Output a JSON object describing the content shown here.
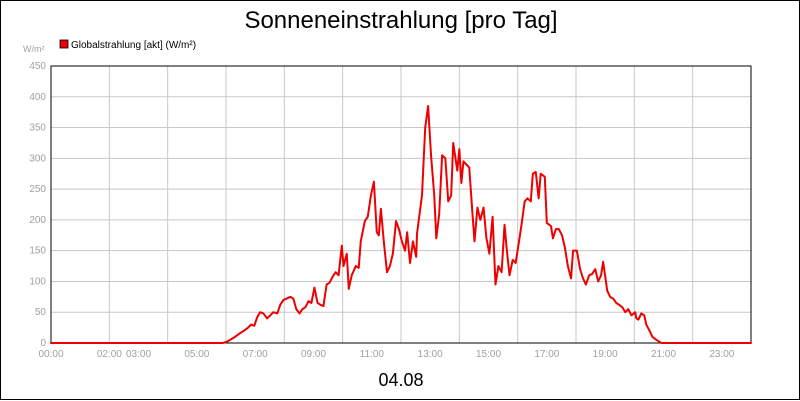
{
  "chart_data": {
    "type": "line",
    "title": "Sonneneinstrahlung [pro Tag]",
    "ylabel": "W/m²",
    "xlabel": "04.08",
    "legend_position": "top-left",
    "grid": true,
    "ylim": [
      0,
      450
    ],
    "xlim": [
      0,
      24
    ],
    "y_ticks": [
      "0",
      "50",
      "100",
      "150",
      "200",
      "250",
      "300",
      "350",
      "400",
      "450"
    ],
    "x_ticks": [
      {
        "label": "00:00",
        "x": 0
      },
      {
        "label": "02:00",
        "x": 2
      },
      {
        "label": "03:00",
        "x": 3
      },
      {
        "label": "05:00",
        "x": 5
      },
      {
        "label": "07:00",
        "x": 7
      },
      {
        "label": "09:00",
        "x": 9
      },
      {
        "label": "11:00",
        "x": 11
      },
      {
        "label": "13:00",
        "x": 13
      },
      {
        "label": "15:00",
        "x": 15
      },
      {
        "label": "17:00",
        "x": 17
      },
      {
        "label": "19:00",
        "x": 19
      },
      {
        "label": "21:00",
        "x": 21
      },
      {
        "label": "23:00",
        "x": 23
      }
    ],
    "grid_x": [
      0,
      2,
      4,
      6,
      8,
      10,
      12,
      14,
      16,
      18,
      20,
      22,
      24
    ],
    "series": [
      {
        "name": "Globalstrahlung [akt] (W/m²)",
        "color": "#ee0000",
        "points": [
          [
            0.0,
            0
          ],
          [
            5.89,
            0
          ],
          [
            6.03,
            2
          ],
          [
            6.14,
            5
          ],
          [
            6.31,
            10
          ],
          [
            6.45,
            15
          ],
          [
            6.62,
            20
          ],
          [
            6.76,
            25
          ],
          [
            6.86,
            30
          ],
          [
            6.97,
            28
          ],
          [
            7.07,
            42
          ],
          [
            7.17,
            50
          ],
          [
            7.28,
            48
          ],
          [
            7.41,
            40
          ],
          [
            7.52,
            45
          ],
          [
            7.62,
            50
          ],
          [
            7.76,
            48
          ],
          [
            7.86,
            62
          ],
          [
            7.97,
            70
          ],
          [
            8.07,
            72
          ],
          [
            8.21,
            75
          ],
          [
            8.31,
            72
          ],
          [
            8.41,
            55
          ],
          [
            8.52,
            48
          ],
          [
            8.62,
            55
          ],
          [
            8.72,
            58
          ],
          [
            8.83,
            68
          ],
          [
            8.93,
            65
          ],
          [
            9.03,
            90
          ],
          [
            9.14,
            65
          ],
          [
            9.24,
            62
          ],
          [
            9.34,
            60
          ],
          [
            9.45,
            95
          ],
          [
            9.55,
            98
          ],
          [
            9.66,
            108
          ],
          [
            9.76,
            115
          ],
          [
            9.86,
            110
          ],
          [
            9.97,
            158
          ],
          [
            10.03,
            125
          ],
          [
            10.14,
            145
          ],
          [
            10.21,
            88
          ],
          [
            10.31,
            110
          ],
          [
            10.45,
            125
          ],
          [
            10.55,
            122
          ],
          [
            10.62,
            165
          ],
          [
            10.76,
            198
          ],
          [
            10.86,
            205
          ],
          [
            10.97,
            240
          ],
          [
            11.07,
            262
          ],
          [
            11.17,
            180
          ],
          [
            11.24,
            175
          ],
          [
            11.31,
            218
          ],
          [
            11.41,
            165
          ],
          [
            11.52,
            115
          ],
          [
            11.62,
            125
          ],
          [
            11.72,
            145
          ],
          [
            11.83,
            198
          ],
          [
            11.93,
            185
          ],
          [
            12.03,
            165
          ],
          [
            12.14,
            150
          ],
          [
            12.21,
            180
          ],
          [
            12.31,
            130
          ],
          [
            12.41,
            165
          ],
          [
            12.52,
            140
          ],
          [
            12.55,
            178
          ],
          [
            12.72,
            240
          ],
          [
            12.83,
            350
          ],
          [
            12.93,
            385
          ],
          [
            13.03,
            305
          ],
          [
            13.14,
            240
          ],
          [
            13.21,
            170
          ],
          [
            13.31,
            210
          ],
          [
            13.41,
            305
          ],
          [
            13.52,
            300
          ],
          [
            13.62,
            230
          ],
          [
            13.72,
            240
          ],
          [
            13.79,
            325
          ],
          [
            13.93,
            280
          ],
          [
            14.0,
            315
          ],
          [
            14.07,
            260
          ],
          [
            14.14,
            295
          ],
          [
            14.24,
            290
          ],
          [
            14.34,
            285
          ],
          [
            14.45,
            210
          ],
          [
            14.52,
            165
          ],
          [
            14.62,
            220
          ],
          [
            14.72,
            200
          ],
          [
            14.83,
            220
          ],
          [
            14.93,
            170
          ],
          [
            15.03,
            145
          ],
          [
            15.14,
            205
          ],
          [
            15.24,
            95
          ],
          [
            15.34,
            125
          ],
          [
            15.45,
            115
          ],
          [
            15.55,
            192
          ],
          [
            15.62,
            155
          ],
          [
            15.72,
            110
          ],
          [
            15.83,
            135
          ],
          [
            15.93,
            130
          ],
          [
            16.03,
            160
          ],
          [
            16.14,
            195
          ],
          [
            16.24,
            230
          ],
          [
            16.34,
            235
          ],
          [
            16.45,
            230
          ],
          [
            16.52,
            275
          ],
          [
            16.62,
            278
          ],
          [
            16.72,
            235
          ],
          [
            16.79,
            275
          ],
          [
            16.93,
            270
          ],
          [
            17.0,
            195
          ],
          [
            17.14,
            190
          ],
          [
            17.21,
            170
          ],
          [
            17.31,
            185
          ],
          [
            17.41,
            185
          ],
          [
            17.52,
            175
          ],
          [
            17.62,
            155
          ],
          [
            17.72,
            125
          ],
          [
            17.83,
            105
          ],
          [
            17.9,
            150
          ],
          [
            18.03,
            150
          ],
          [
            18.14,
            120
          ],
          [
            18.24,
            105
          ],
          [
            18.34,
            95
          ],
          [
            18.45,
            110
          ],
          [
            18.55,
            112
          ],
          [
            18.66,
            120
          ],
          [
            18.76,
            100
          ],
          [
            18.86,
            110
          ],
          [
            18.93,
            132
          ],
          [
            19.07,
            85
          ],
          [
            19.17,
            75
          ],
          [
            19.28,
            72
          ],
          [
            19.38,
            65
          ],
          [
            19.48,
            62
          ],
          [
            19.59,
            58
          ],
          [
            19.69,
            50
          ],
          [
            19.79,
            55
          ],
          [
            19.9,
            45
          ],
          [
            20.03,
            50
          ],
          [
            20.07,
            40
          ],
          [
            20.14,
            38
          ],
          [
            20.24,
            48
          ],
          [
            20.34,
            45
          ],
          [
            20.41,
            30
          ],
          [
            20.52,
            20
          ],
          [
            20.62,
            10
          ],
          [
            20.76,
            5
          ],
          [
            20.93,
            0
          ],
          [
            24.0,
            0
          ]
        ]
      }
    ]
  }
}
